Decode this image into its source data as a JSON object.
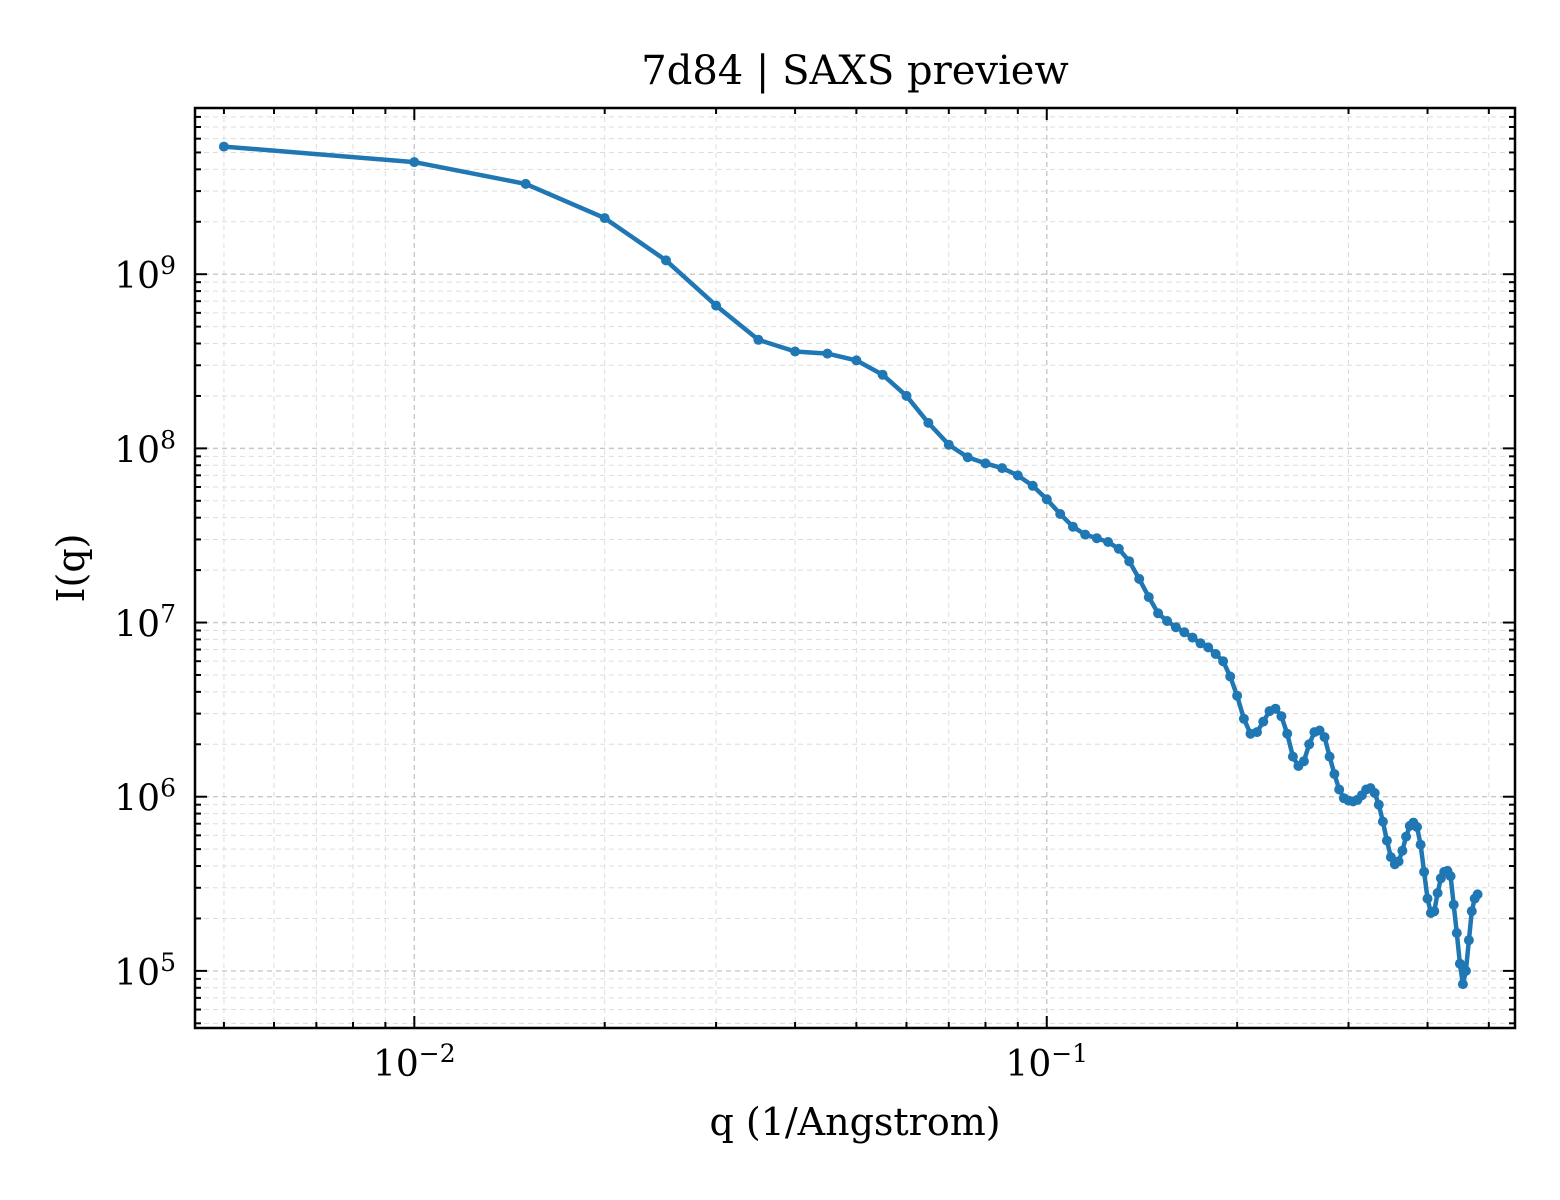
{
  "chart_data": {
    "type": "line",
    "title": "7d84 | SAXS preview",
    "xlabel": "q (1/Angstrom)",
    "ylabel": "I(q)",
    "xscale": "log",
    "yscale": "log",
    "xlim": [
      0.0045,
      0.55
    ],
    "ylim": [
      47000,
      9000000000
    ],
    "grid": true,
    "legend": "none",
    "x_ticks": [
      {
        "value": 0.01,
        "base": "10",
        "exp": "−2"
      },
      {
        "value": 0.1,
        "base": "10",
        "exp": "−1"
      }
    ],
    "y_ticks": [
      {
        "value": 100000,
        "base": "10",
        "exp": "5"
      },
      {
        "value": 1000000,
        "base": "10",
        "exp": "6"
      },
      {
        "value": 10000000,
        "base": "10",
        "exp": "7"
      },
      {
        "value": 100000000,
        "base": "10",
        "exp": "8"
      },
      {
        "value": 1000000000,
        "base": "10",
        "exp": "9"
      }
    ],
    "series": [
      {
        "color": "#1f77b4",
        "points": [
          [
            0.005,
            5400000000.0
          ],
          [
            0.01,
            4400000000.0
          ],
          [
            0.015,
            3300000000.0
          ],
          [
            0.02,
            2100000000.0
          ],
          [
            0.025,
            1200000000.0
          ],
          [
            0.03,
            660000000.0
          ],
          [
            0.035,
            420000000.0
          ],
          [
            0.04,
            360000000.0
          ],
          [
            0.045,
            350000000.0
          ],
          [
            0.05,
            320000000.0
          ],
          [
            0.055,
            265000000.0
          ],
          [
            0.06,
            200000000.0
          ],
          [
            0.065,
            140000000.0
          ],
          [
            0.07,
            105000000.0
          ],
          [
            0.075,
            89000000.0
          ],
          [
            0.08,
            82000000.0
          ],
          [
            0.085,
            77000000.0
          ],
          [
            0.09,
            70000000.0
          ],
          [
            0.095,
            61000000.0
          ],
          [
            0.1,
            51000000.0
          ],
          [
            0.105,
            42000000.0
          ],
          [
            0.11,
            35500000.0
          ],
          [
            0.115,
            32000000.0
          ],
          [
            0.12,
            30500000.0
          ],
          [
            0.125,
            29000000.0
          ],
          [
            0.13,
            26500000.0
          ],
          [
            0.135,
            22500000.0
          ],
          [
            0.14,
            17800000.0
          ],
          [
            0.145,
            14000000.0
          ],
          [
            0.15,
            11300000.0
          ],
          [
            0.155,
            10200000.0
          ],
          [
            0.16,
            9400000.0
          ],
          [
            0.165,
            8800000.0
          ],
          [
            0.17,
            8200000.0
          ],
          [
            0.175,
            7600000.0
          ],
          [
            0.18,
            7200000.0
          ],
          [
            0.185,
            6600000.0
          ],
          [
            0.19,
            6000000.0
          ],
          [
            0.195,
            4900000.0
          ],
          [
            0.2,
            3800000.0
          ],
          [
            0.205,
            2800000.0
          ],
          [
            0.21,
            2300000.0
          ],
          [
            0.215,
            2350000.0
          ],
          [
            0.22,
            2700000.0
          ],
          [
            0.225,
            3100000.0
          ],
          [
            0.23,
            3200000.0
          ],
          [
            0.235,
            2900000.0
          ],
          [
            0.24,
            2300000.0
          ],
          [
            0.245,
            1700000.0
          ],
          [
            0.25,
            1500000.0
          ],
          [
            0.255,
            1600000.0
          ],
          [
            0.26,
            2000000.0
          ],
          [
            0.265,
            2350000.0
          ],
          [
            0.27,
            2400000.0
          ],
          [
            0.275,
            2200000.0
          ],
          [
            0.28,
            1700000.0
          ],
          [
            0.285,
            1350000.0
          ],
          [
            0.29,
            1100000.0
          ],
          [
            0.295,
            980000.0
          ],
          [
            0.3,
            950000.0
          ],
          [
            0.305,
            940000.0
          ],
          [
            0.31,
            960000.0
          ],
          [
            0.315,
            1020000.0
          ],
          [
            0.32,
            1100000.0
          ],
          [
            0.325,
            1120000.0
          ],
          [
            0.33,
            1050000.0
          ],
          [
            0.335,
            900000.0
          ],
          [
            0.34,
            720000.0
          ],
          [
            0.345,
            560000.0
          ],
          [
            0.35,
            450000.0
          ],
          [
            0.355,
            410000.0
          ],
          [
            0.36,
            425000.0
          ],
          [
            0.365,
            490000.0
          ],
          [
            0.37,
            590000.0
          ],
          [
            0.375,
            680000.0
          ],
          [
            0.38,
            710000.0
          ],
          [
            0.385,
            670000.0
          ],
          [
            0.39,
            530000.0
          ],
          [
            0.395,
            370000.0
          ],
          [
            0.4,
            260000.0
          ],
          [
            0.405,
            215000.0
          ],
          [
            0.41,
            220000.0
          ],
          [
            0.415,
            280000.0
          ],
          [
            0.42,
            340000.0
          ],
          [
            0.425,
            370000.0
          ],
          [
            0.43,
            375000.0
          ],
          [
            0.435,
            350000.0
          ],
          [
            0.44,
            240000.0
          ],
          [
            0.445,
            165000.0
          ],
          [
            0.45,
            110000.0
          ],
          [
            0.455,
            84000.0
          ],
          [
            0.46,
            100000.0
          ],
          [
            0.465,
            150000.0
          ],
          [
            0.47,
            220000.0
          ],
          [
            0.475,
            260000.0
          ],
          [
            0.48,
            275000.0
          ]
        ]
      }
    ]
  }
}
